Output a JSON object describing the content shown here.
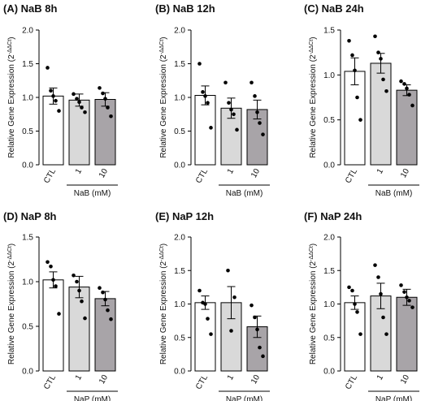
{
  "figure_colors": {
    "CTL": "#ffffff",
    "1": "#d9d9d9",
    "10": "#a8a4a8",
    "stroke": "#000000"
  },
  "ylabel": "Relative Gene  Expression (2",
  "ylabel_sup": "-ΔΔCt",
  "ylabel_close": ")",
  "chart_data": [
    {
      "type": "bar",
      "title": "(A) NaB 8h",
      "categories": [
        "CTL",
        "1",
        "10"
      ],
      "group_label": "NaB (mM)",
      "ylim": [
        0,
        2.0
      ],
      "yticks": [
        "0.0",
        "0.5",
        "1.0",
        "1.5",
        "2.0"
      ],
      "ytick_values": [
        0,
        0.5,
        1.0,
        1.5,
        2.0
      ],
      "values": [
        1.02,
        0.96,
        0.97
      ],
      "errors": [
        0.12,
        0.09,
        0.1
      ],
      "points": [
        [
          1.44,
          1.1,
          1.02,
          0.95,
          0.8
        ],
        [
          1.05,
          0.98,
          0.93,
          0.85,
          0.78
        ],
        [
          1.14,
          1.06,
          0.98,
          0.85,
          0.72
        ]
      ]
    },
    {
      "type": "bar",
      "title": "(B) NaB 12h",
      "categories": [
        "CTL",
        "1",
        "10"
      ],
      "group_label": "NaB (mM)",
      "ylim": [
        0,
        2.0
      ],
      "yticks": [
        "0.0",
        "0.5",
        "1.0",
        "1.5",
        "2.0"
      ],
      "ytick_values": [
        0,
        0.5,
        1.0,
        1.5,
        2.0
      ],
      "values": [
        1.03,
        0.84,
        0.82
      ],
      "errors": [
        0.14,
        0.15,
        0.14
      ],
      "points": [
        [
          1.5,
          1.08,
          1.02,
          0.92,
          0.55
        ],
        [
          1.22,
          0.92,
          0.82,
          0.75,
          0.52
        ],
        [
          1.22,
          1.02,
          0.78,
          0.62,
          0.45
        ]
      ]
    },
    {
      "type": "bar",
      "title": "(C) NaB 24h",
      "categories": [
        "CTL",
        "1",
        "10"
      ],
      "group_label": "NaB (mM)",
      "ylim": [
        0,
        1.5
      ],
      "yticks": [
        "0.0",
        "0.5",
        "1.0",
        "1.5"
      ],
      "ytick_values": [
        0,
        0.5,
        1.0,
        1.5
      ],
      "values": [
        1.04,
        1.13,
        0.83
      ],
      "errors": [
        0.15,
        0.11,
        0.06
      ],
      "points": [
        [
          1.38,
          1.22,
          1.05,
          0.75,
          0.5
        ],
        [
          1.43,
          1.25,
          1.18,
          0.95,
          0.82
        ],
        [
          0.93,
          0.9,
          0.85,
          0.78,
          0.66
        ]
      ]
    },
    {
      "type": "bar",
      "title": "(D) NaP 8h",
      "categories": [
        "CTL",
        "1",
        "10"
      ],
      "group_label": "NaP (mM)",
      "ylim": [
        0,
        1.5
      ],
      "yticks": [
        "0.0",
        "0.5",
        "1.0",
        "1.5"
      ],
      "ytick_values": [
        0,
        0.5,
        1.0,
        1.5
      ],
      "values": [
        1.02,
        0.94,
        0.81
      ],
      "errors": [
        0.09,
        0.12,
        0.08
      ],
      "points": [
        [
          1.22,
          1.17,
          1.02,
          0.95,
          0.64
        ],
        [
          1.07,
          1.0,
          0.9,
          0.78,
          0.59
        ],
        [
          0.93,
          0.88,
          0.8,
          0.68,
          0.58
        ]
      ]
    },
    {
      "type": "bar",
      "title": "(E) NaP 12h",
      "categories": [
        "CTL",
        "1",
        "10"
      ],
      "group_label": "NaP (mM)",
      "ylim": [
        0,
        2.0
      ],
      "yticks": [
        "0.0",
        "0.5",
        "1.0",
        "1.5",
        "2.0"
      ],
      "ytick_values": [
        0,
        0.5,
        1.0,
        1.5,
        2.0
      ],
      "values": [
        1.02,
        1.02,
        0.66
      ],
      "errors": [
        0.1,
        0.24,
        0.16
      ],
      "points": [
        [
          1.2,
          1.02,
          1.0,
          0.78,
          0.55
        ],
        [
          1.5,
          1.1,
          0.6
        ],
        [
          0.98,
          0.8,
          0.62,
          0.35,
          0.22
        ]
      ]
    },
    {
      "type": "bar",
      "title": "(F) NaP 24h",
      "categories": [
        "CTL",
        "1",
        "10"
      ],
      "group_label": "NaP (mM)",
      "ylim": [
        0,
        2.0
      ],
      "yticks": [
        "0.0",
        "0.5",
        "1.0",
        "1.5",
        "2.0"
      ],
      "ytick_values": [
        0,
        0.5,
        1.0,
        1.5,
        2.0
      ],
      "values": [
        1.02,
        1.12,
        1.1
      ],
      "errors": [
        0.1,
        0.19,
        0.12
      ],
      "points": [
        [
          1.25,
          1.2,
          1.0,
          0.88,
          0.55
        ],
        [
          1.58,
          1.4,
          1.15,
          0.8,
          0.55
        ],
        [
          1.28,
          1.18,
          1.1,
          1.05,
          0.95
        ]
      ]
    }
  ]
}
